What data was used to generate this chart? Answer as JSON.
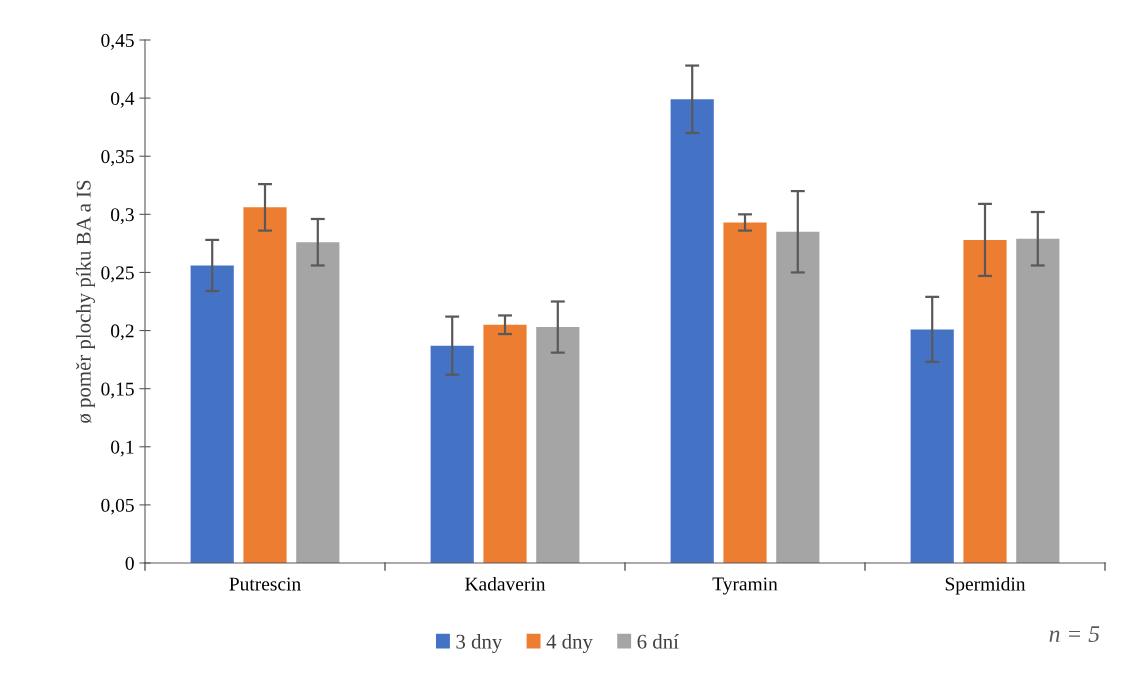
{
  "chart_data": {
    "type": "bar",
    "ylabel": "ø poměr plochy píku BA a IS",
    "categories": [
      "Putrescin",
      "Kadaverin",
      "Tyramin",
      "Spermidin"
    ],
    "series": [
      {
        "name": "3 dny",
        "color": "#4472c4",
        "values": [
          0.256,
          0.187,
          0.399,
          0.201
        ],
        "errors": [
          0.022,
          0.025,
          0.029,
          0.028
        ]
      },
      {
        "name": "4 dny",
        "color": "#ed7d31",
        "values": [
          0.306,
          0.205,
          0.293,
          0.278
        ],
        "errors": [
          0.02,
          0.008,
          0.007,
          0.031
        ]
      },
      {
        "name": "6 dní",
        "color": "#a5a5a5",
        "values": [
          0.276,
          0.203,
          0.285,
          0.279
        ],
        "errors": [
          0.02,
          0.022,
          0.035,
          0.023
        ]
      }
    ],
    "ylim": [
      0,
      0.45
    ],
    "yticks": [
      {
        "value": 0,
        "label": "0"
      },
      {
        "value": 0.05,
        "label": "0,05"
      },
      {
        "value": 0.1,
        "label": "0,1"
      },
      {
        "value": 0.15,
        "label": "0,15"
      },
      {
        "value": 0.2,
        "label": "0,2"
      },
      {
        "value": 0.25,
        "label": "0,25"
      },
      {
        "value": 0.3,
        "label": "0,3"
      },
      {
        "value": 0.35,
        "label": "0,35"
      },
      {
        "value": 0.4,
        "label": "0,4"
      },
      {
        "value": 0.45,
        "label": "0,45"
      }
    ],
    "annotations": [
      "n = 5"
    ],
    "legend": "bottom",
    "grid": false
  }
}
